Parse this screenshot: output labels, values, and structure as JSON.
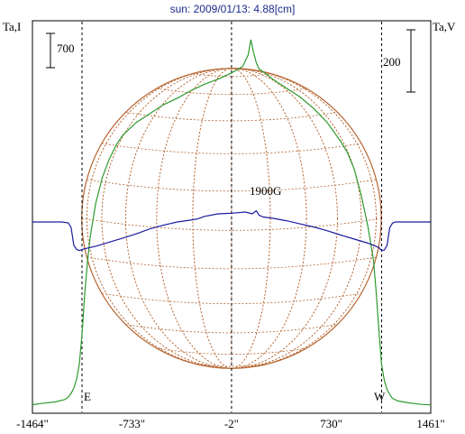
{
  "chart_data": {
    "type": "line",
    "title": "sun: 2009/01/13: 4.88[cm]",
    "ylabel_left": "Ta,I",
    "ylabel_right": "Ta,V",
    "scale_left": "700",
    "scale_right": "200",
    "annotation": "1900G",
    "limb_east_label": "E",
    "limb_west_label": "W",
    "x_ticks": [
      "-1464\"",
      "-733\"",
      "-2\"",
      "730\"",
      "1461\""
    ],
    "x_tick_values": [
      -1464,
      -733,
      -2,
      730,
      1461
    ],
    "x_range": [
      -1464,
      1461
    ],
    "vertical_markers": [
      -1100,
      -2,
      1100
    ],
    "solar_disk_radius_arcsec": 1100,
    "series": [
      {
        "name": "Ta,I",
        "color": "#2e9b2e",
        "axis": "left",
        "x": [
          -1464,
          -1400,
          -1300,
          -1230,
          -1200,
          -1180,
          -1160,
          -1140,
          -1120,
          -1100,
          -1080,
          -1060,
          -1040,
          -1000,
          -950,
          -900,
          -850,
          -800,
          -700,
          -600,
          -500,
          -400,
          -300,
          -200,
          -100,
          0,
          80,
          120,
          140,
          160,
          180,
          200,
          240,
          300,
          400,
          500,
          600,
          700,
          800,
          850,
          900,
          950,
          1000,
          1040,
          1060,
          1080,
          1100,
          1120,
          1140,
          1160,
          1180,
          1220,
          1300,
          1400,
          1461
        ],
        "y": [
          10,
          20,
          32,
          50,
          70,
          100,
          140,
          210,
          330,
          560,
          880,
          1130,
          1330,
          1590,
          1800,
          1940,
          2050,
          2130,
          2230,
          2300,
          2370,
          2420,
          2480,
          2530,
          2570,
          2620,
          2670,
          2760,
          2880,
          2780,
          2700,
          2650,
          2620,
          2570,
          2500,
          2430,
          2340,
          2230,
          2080,
          1990,
          1860,
          1660,
          1410,
          1150,
          900,
          600,
          330,
          200,
          130,
          90,
          60,
          40,
          25,
          12,
          10
        ]
      },
      {
        "name": "Ta,V",
        "color": "#1c1ca0",
        "axis": "right",
        "x": [
          -1464,
          -1350,
          -1250,
          -1200,
          -1180,
          -1160,
          -1140,
          -1120,
          -1100,
          -1000,
          -900,
          -800,
          -700,
          -600,
          -500,
          -400,
          -300,
          -250,
          -200,
          -100,
          0,
          100,
          150,
          180,
          200,
          230,
          300,
          400,
          500,
          600,
          700,
          800,
          900,
          1000,
          1080,
          1100,
          1120,
          1140,
          1160,
          1180,
          1200,
          1250,
          1350,
          1461
        ],
        "y": [
          0,
          0,
          0,
          -3,
          -18,
          -75,
          -88,
          -92,
          -88,
          -78,
          -65,
          -52,
          -38,
          -22,
          -10,
          0,
          6,
          10,
          18,
          26,
          28,
          32,
          26,
          36,
          22,
          16,
          12,
          4,
          -6,
          -16,
          -28,
          -42,
          -55,
          -68,
          -82,
          -92,
          -90,
          -75,
          -18,
          -4,
          0,
          0,
          0,
          0
        ]
      }
    ]
  }
}
